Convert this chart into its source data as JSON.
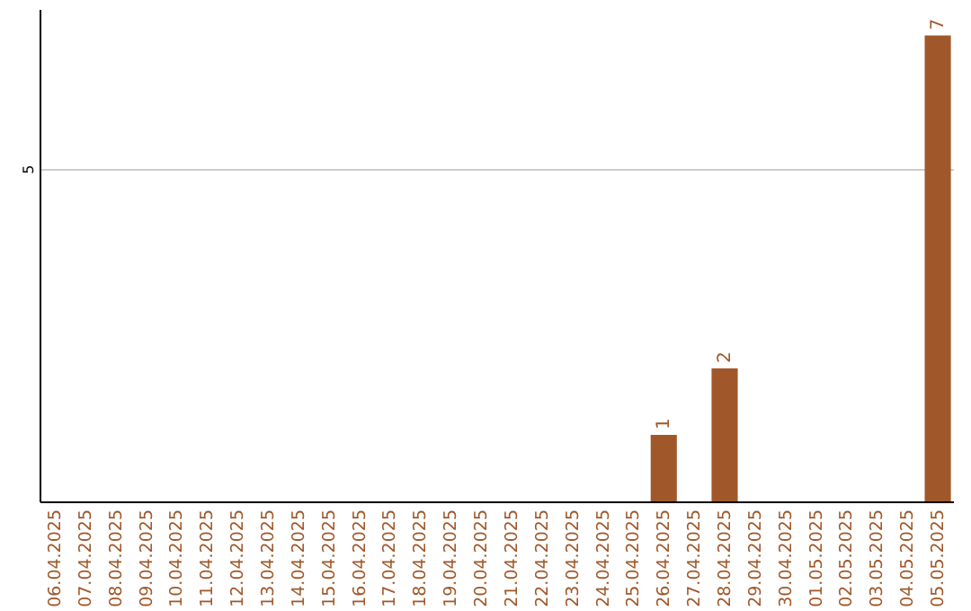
{
  "chart_data": {
    "type": "bar",
    "categories": [
      "06.04.2025",
      "07.04.2025",
      "08.04.2025",
      "09.04.2025",
      "10.04.2025",
      "11.04.2025",
      "12.04.2025",
      "13.04.2025",
      "14.04.2025",
      "15.04.2025",
      "16.04.2025",
      "17.04.2025",
      "18.04.2025",
      "19.04.2025",
      "20.04.2025",
      "21.04.2025",
      "22.04.2025",
      "23.04.2025",
      "24.04.2025",
      "25.04.2025",
      "26.04.2025",
      "27.04.2025",
      "28.04.2025",
      "29.04.2025",
      "30.04.2025",
      "01.05.2025",
      "02.05.2025",
      "03.05.2025",
      "04.05.2025",
      "05.05.2025"
    ],
    "values": [
      null,
      null,
      null,
      null,
      null,
      null,
      null,
      null,
      null,
      null,
      null,
      null,
      null,
      null,
      null,
      null,
      null,
      null,
      null,
      null,
      1,
      null,
      2,
      null,
      null,
      null,
      null,
      null,
      null,
      7
    ],
    "value_labels": [
      null,
      null,
      null,
      null,
      null,
      null,
      null,
      null,
      null,
      null,
      null,
      null,
      null,
      null,
      null,
      null,
      null,
      null,
      null,
      null,
      "1",
      null,
      "2",
      null,
      null,
      null,
      null,
      null,
      null,
      "7"
    ],
    "color": "#a0582a",
    "ylim": [
      0,
      7.4
    ],
    "yticks": [
      5
    ],
    "grid": "y"
  }
}
